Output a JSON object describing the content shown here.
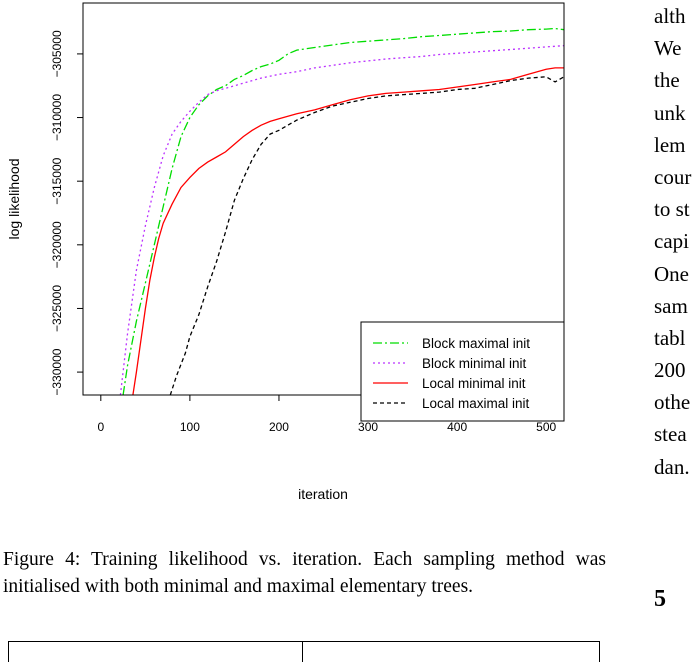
{
  "chart_data": {
    "type": "line",
    "xlabel": "iteration",
    "ylabel": "log likelihood",
    "xlim": [
      -20,
      520
    ],
    "ylim": [
      -331800,
      -301000
    ],
    "x_ticks": [
      0,
      100,
      200,
      300,
      400,
      500
    ],
    "y_ticks": [
      -330000,
      -325000,
      -320000,
      -315000,
      -310000,
      -305000
    ],
    "legend_position": "bottom-right",
    "grid": false,
    "series": [
      {
        "name": "Block maximal init",
        "color": "#00dd00",
        "dash": "9,3,2,3",
        "x": [
          25,
          30,
          40,
          50,
          60,
          70,
          80,
          90,
          100,
          110,
          120,
          130,
          140,
          150,
          160,
          170,
          180,
          190,
          200,
          210,
          220,
          240,
          260,
          280,
          300,
          320,
          340,
          360,
          380,
          400,
          420,
          440,
          460,
          480,
          500,
          510,
          520
        ],
        "y": [
          -331800,
          -329500,
          -326000,
          -323000,
          -320000,
          -317000,
          -314000,
          -311500,
          -310000,
          -309000,
          -308300,
          -307800,
          -307500,
          -307000,
          -306700,
          -306300,
          -306000,
          -305800,
          -305500,
          -305000,
          -304700,
          -304500,
          -304300,
          -304100,
          -304000,
          -303900,
          -303800,
          -303650,
          -303550,
          -303450,
          -303350,
          -303250,
          -303200,
          -303100,
          -303050,
          -303000,
          -303100
        ]
      },
      {
        "name": "Block minimal init",
        "color": "#bb33ff",
        "dash": "2,3",
        "x": [
          22,
          30,
          40,
          50,
          60,
          70,
          80,
          90,
          100,
          110,
          120,
          130,
          140,
          160,
          180,
          200,
          220,
          240,
          260,
          280,
          300,
          320,
          340,
          360,
          380,
          400,
          420,
          440,
          460,
          480,
          500,
          510,
          520
        ],
        "y": [
          -331800,
          -327000,
          -322000,
          -318500,
          -315500,
          -313000,
          -311300,
          -310300,
          -309500,
          -308800,
          -308200,
          -307900,
          -307700,
          -307300,
          -306900,
          -306600,
          -306400,
          -306100,
          -305900,
          -305700,
          -305550,
          -305400,
          -305300,
          -305200,
          -305050,
          -304950,
          -304850,
          -304750,
          -304650,
          -304550,
          -304450,
          -304400,
          -304350
        ]
      },
      {
        "name": "Local minimal init",
        "color": "#ff0000",
        "dash": "",
        "x": [
          36,
          40,
          45,
          50,
          55,
          60,
          65,
          70,
          80,
          90,
          100,
          110,
          120,
          130,
          140,
          150,
          160,
          170,
          180,
          190,
          200,
          220,
          240,
          260,
          280,
          300,
          320,
          340,
          360,
          380,
          400,
          420,
          440,
          460,
          480,
          500,
          510,
          520
        ],
        "y": [
          -331800,
          -330000,
          -327500,
          -325000,
          -322800,
          -321000,
          -319500,
          -318300,
          -316800,
          -315500,
          -314700,
          -314000,
          -313500,
          -313100,
          -312700,
          -312100,
          -311500,
          -311000,
          -310600,
          -310300,
          -310100,
          -309700,
          -309400,
          -309000,
          -308600,
          -308300,
          -308100,
          -308000,
          -307900,
          -307800,
          -307600,
          -307400,
          -307200,
          -307000,
          -306600,
          -306200,
          -306100,
          -306100
        ]
      },
      {
        "name": "Local maximal init",
        "color": "#000000",
        "dash": "4,3",
        "x": [
          78,
          85,
          95,
          100,
          110,
          120,
          130,
          140,
          150,
          160,
          170,
          180,
          190,
          200,
          220,
          240,
          260,
          280,
          300,
          320,
          340,
          360,
          380,
          400,
          420,
          440,
          460,
          480,
          500,
          510,
          520
        ],
        "y": [
          -331800,
          -330300,
          -328500,
          -327200,
          -325500,
          -323300,
          -321300,
          -319000,
          -316500,
          -314800,
          -313300,
          -312100,
          -311300,
          -311000,
          -310200,
          -309600,
          -309100,
          -308800,
          -308500,
          -308300,
          -308200,
          -308100,
          -308000,
          -307800,
          -307700,
          -307400,
          -307100,
          -306900,
          -306800,
          -307200,
          -306800
        ]
      }
    ]
  },
  "figure": {
    "caption": "Figure 4: Training likelihood vs. iteration. Each sampling method was initialised with both minimal and maximal elementary trees."
  },
  "right_column": {
    "lines": [
      "alth",
      "We",
      "the",
      "unk",
      "lem",
      "cour",
      "to st",
      "capi",
      "One",
      "sam",
      "tabl",
      "200",
      "othe",
      "stea",
      "dan."
    ],
    "section_number": "5"
  }
}
